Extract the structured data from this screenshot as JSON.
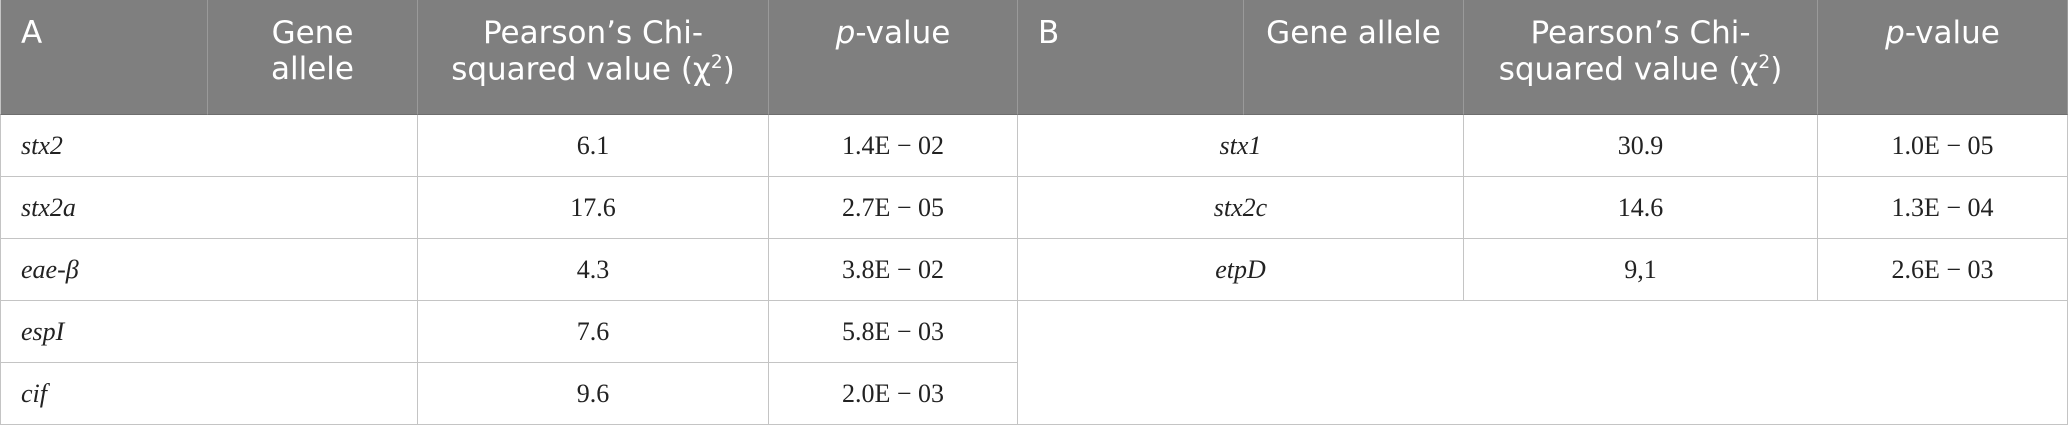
{
  "tables": [
    {
      "label": "A",
      "gene_header": "Gene allele",
      "chi_header": {
        "text": "Pearson’s Chi-squared value (χ",
        "sup": "2",
        "close": ")"
      },
      "p_header": {
        "italic": "p",
        "text": "-value"
      },
      "rows": [
        [
          "stx2",
          "6.1",
          "1.4E − 02"
        ],
        [
          "stx2a",
          "17.6",
          "2.7E − 05"
        ],
        [
          "eae-β",
          "4.3",
          "3.8E − 02"
        ],
        [
          "espI",
          "7.6",
          "5.8E − 03"
        ],
        [
          "cif",
          "9.6",
          "2.0E − 03"
        ]
      ]
    },
    {
      "label": "B",
      "gene_header": "Gene allele",
      "chi_header": {
        "text": "Pearson’s Chi-squared value (χ",
        "sup": "2",
        "close": ")"
      },
      "p_header": {
        "italic": "p",
        "text": "-value"
      },
      "rows": [
        [
          "stx1",
          "30.9",
          "1.0E − 05"
        ],
        [
          "stx2c",
          "14.6",
          "1.3E − 04"
        ],
        [
          "etpD",
          "9,1",
          "2.6E − 03"
        ]
      ]
    }
  ]
}
